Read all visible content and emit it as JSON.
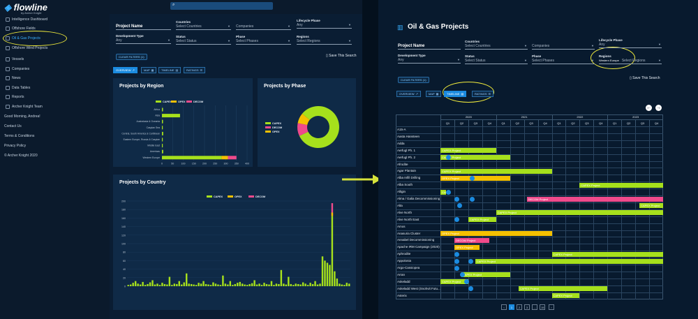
{
  "left": {
    "logo": "flowline",
    "logo_sub": "by Archer Knight",
    "nav": [
      "Intelligence Dashboard",
      "Offshore Fields",
      "Oil & Gas Projects",
      "Offshore Wind Projects",
      "Vessels",
      "Companies",
      "News",
      "Data Tables",
      "Reports",
      "Archer Knight Team"
    ],
    "greeting": "Good Morning, Andrea!",
    "contact": "Contact Us",
    "terms": "Terms & Conditions",
    "privacy": "Privacy Policy",
    "copyright": "© Archer Knight 2020",
    "filters": {
      "project_name": "Project Name",
      "countries_label": "Countries",
      "countries_placeholder": "Select Countries",
      "companies": "Companies",
      "lifecycle_label": "Lifecycle Phase",
      "lifecycle_value": "Any",
      "devtype_label": "Development Type",
      "devtype_value": "Any",
      "status_label": "Status",
      "status_value": "Select Status",
      "phase_label": "Phase",
      "phase_value": "Select Phases",
      "regions_label": "Regions",
      "regions_value": "Select Regions",
      "clear": "CLEAR FILTERS (1)",
      "save": "Save This Search"
    },
    "tabs": [
      "OVERVIEW",
      "MAP",
      "TIMELINE",
      "RATINGS"
    ],
    "region_card": {
      "title": "Projects by Region",
      "legend": [
        "CAPEX",
        "OPEX",
        "DECOM"
      ],
      "categories": [
        "Africa",
        "Asia",
        "Australasia & Oceania",
        "Caspian Sea",
        "Central, South America & Caribbean",
        "Eastern Europe, Russia & Caspian",
        "Middle East",
        "Americas",
        "Western Europe"
      ],
      "xticks": [
        "0",
        "50",
        "100",
        "150",
        "200",
        "250",
        "300",
        "350",
        "400"
      ]
    },
    "phase_card": {
      "title": "Projects by Phase",
      "legend": [
        "CAPEX",
        "DECOM",
        "OPEX"
      ]
    },
    "country_card": {
      "title": "Projects by Country",
      "legend": [
        "CAPEX",
        "OPEX",
        "DECOM"
      ],
      "yticks": [
        "0",
        "20",
        "40",
        "60",
        "80",
        "100",
        "120",
        "140",
        "160",
        "180",
        "200"
      ]
    }
  },
  "chart_data": [
    {
      "type": "bar",
      "title": "Projects by Region",
      "categories": [
        "Africa",
        "Asia",
        "Australasia & Oceania",
        "Caspian Sea",
        "Central, South America & Caribbean",
        "Eastern Europe, Russia & Caspian",
        "Middle East",
        "Americas",
        "Western Europe"
      ],
      "series": [
        {
          "name": "CAPEX",
          "values": [
            5,
            85,
            5,
            4,
            6,
            4,
            4,
            6,
            280
          ]
        },
        {
          "name": "OPEX",
          "values": [
            0,
            0,
            0,
            0,
            0,
            0,
            0,
            0,
            30
          ]
        },
        {
          "name": "DECOM",
          "values": [
            0,
            0,
            0,
            0,
            0,
            0,
            0,
            0,
            40
          ]
        }
      ],
      "xlim": [
        0,
        400
      ]
    },
    {
      "type": "pie",
      "title": "Projects by Phase",
      "categories": [
        "CAPEX",
        "DECOM",
        "OPEX"
      ],
      "values": [
        82,
        10,
        8
      ]
    }
  ],
  "right": {
    "title": "Oil & Gas Projects",
    "filters": {
      "project_name": "Project Name",
      "countries_label": "Countries",
      "countries_placeholder": "Select Countries",
      "companies": "Companies",
      "lifecycle_label": "Lifecycle Phase",
      "lifecycle_value": "Any",
      "devtype_label": "Development Type",
      "devtype_value": "Any",
      "status_label": "Status",
      "status_value": "Select Status",
      "phase_label": "Phase",
      "phase_value": "Select Phases",
      "regions_label": "Regions",
      "regions_chip": "Western Europe",
      "regions_value": "Select Regions",
      "clear": "CLEAR FILTERS (1)",
      "save": "Save This Search"
    },
    "tabs": [
      "OVERVIEW",
      "MAP",
      "TIMELINE",
      "RATINGS"
    ],
    "years": [
      "2020",
      "2021",
      "2022",
      "2023"
    ],
    "quarters": [
      "Q1",
      "Q2",
      "Q3",
      "Q4",
      "Q1",
      "Q2",
      "Q3",
      "Q4",
      "Q1",
      "Q2",
      "Q3",
      "Q4",
      "Q1",
      "Q2",
      "Q3",
      "Q4"
    ],
    "rows": [
      "A15-A",
      "Aasta Hansteen",
      "Adda",
      "Aerfugl Ph. 1",
      "Aerfugl Ph. 2",
      "Afrodite",
      "Agar Plantain",
      "Alba Infill Drilling",
      "Alba South",
      "Alligin",
      "Alma / Galia Decommissioning",
      "Alta",
      "Alve North",
      "Alve North East",
      "Amos",
      "Anasuria Cluster",
      "Annabel Decommissioning",
      "Apache IRM Campaign (2020)",
      "Aphrodite",
      "Appolonia",
      "Argo-Cassiopea",
      "Arran",
      "Askeladd",
      "Askeladd West (Snohvit Futu...",
      "Asterix"
    ],
    "bar_labels": {
      "capex": "CAPEX Project",
      "opex": "OPEX Project",
      "decom": "DECOM Project"
    },
    "pages": [
      "‹",
      "1",
      "2",
      "3",
      "...",
      "15",
      "›"
    ]
  }
}
